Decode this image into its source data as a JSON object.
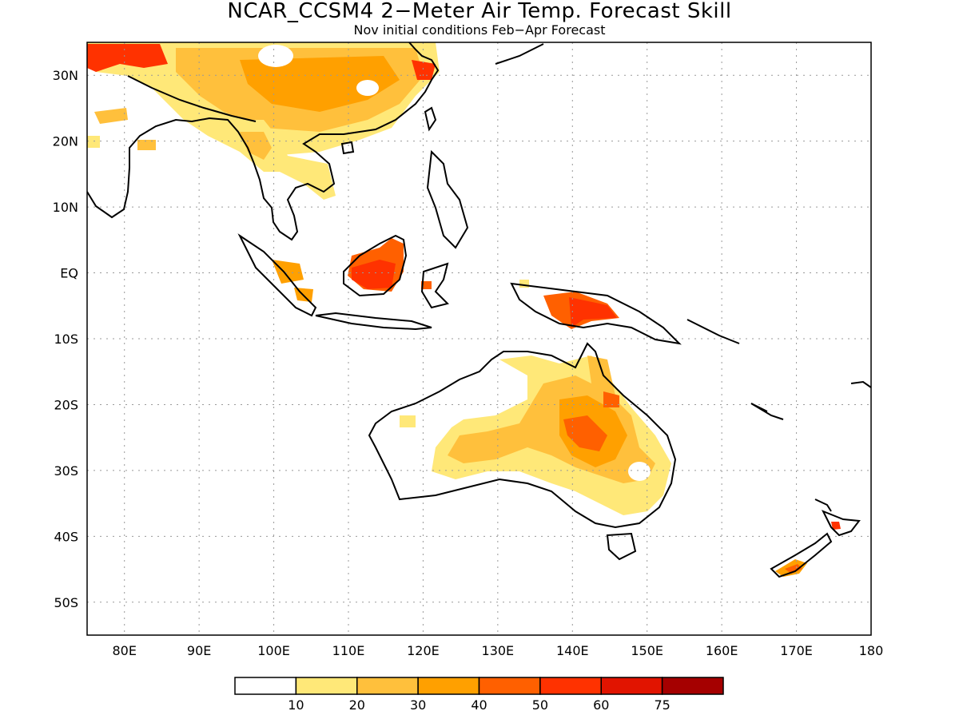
{
  "title": "NCAR_CCSM4 2−Meter Air Temp. Forecast Skill",
  "subtitle": "Nov initial conditions  Feb−Apr Forecast",
  "lon_ticks": [
    {
      "value": 80,
      "label": "80E"
    },
    {
      "value": 90,
      "label": "90E"
    },
    {
      "value": 100,
      "label": "100E"
    },
    {
      "value": 110,
      "label": "110E"
    },
    {
      "value": 120,
      "label": "120E"
    },
    {
      "value": 130,
      "label": "130E"
    },
    {
      "value": 140,
      "label": "140E"
    },
    {
      "value": 150,
      "label": "150E"
    },
    {
      "value": 160,
      "label": "160E"
    },
    {
      "value": 170,
      "label": "170E"
    },
    {
      "value": 180,
      "label": "180"
    }
  ],
  "lat_ticks": [
    {
      "value": 30,
      "label": "30N"
    },
    {
      "value": 20,
      "label": "20N"
    },
    {
      "value": 10,
      "label": "10N"
    },
    {
      "value": 0,
      "label": "EQ"
    },
    {
      "value": -10,
      "label": "10S"
    },
    {
      "value": -20,
      "label": "20S"
    },
    {
      "value": -30,
      "label": "30S"
    },
    {
      "value": -40,
      "label": "40S"
    },
    {
      "value": -50,
      "label": "50S"
    }
  ],
  "extent": {
    "lon_min": 75,
    "lon_max": 180,
    "lat_min": -55,
    "lat_max": 35
  },
  "colorbar": {
    "colors": [
      "#ffffff",
      "#ffe878",
      "#ffc03c",
      "#ffa000",
      "#ff6000",
      "#ff3200",
      "#e11400",
      "#a50000"
    ],
    "labels": [
      "10",
      "20",
      "30",
      "40",
      "50",
      "60",
      "75"
    ]
  }
}
